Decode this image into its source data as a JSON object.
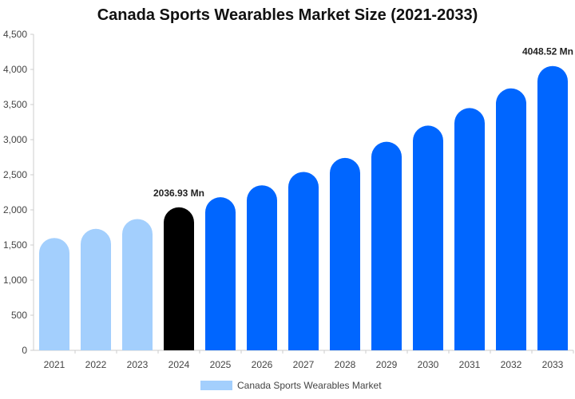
{
  "chart_data": {
    "type": "bar",
    "title": "Canada Sports Wearables Market Size (2021-2033)",
    "xlabel": "",
    "ylabel": "",
    "categories": [
      "2021",
      "2022",
      "2023",
      "2024",
      "2025",
      "2026",
      "2027",
      "2028",
      "2029",
      "2030",
      "2031",
      "2032",
      "2033"
    ],
    "series": [
      {
        "name": "Canada Sports Wearables Market",
        "values": [
          1600,
          1730,
          1870,
          2036.93,
          2180,
          2350,
          2540,
          2740,
          2970,
          3200,
          3450,
          3730,
          4048.52
        ]
      }
    ],
    "ylim": [
      0,
      4500
    ],
    "yticks": [
      0,
      500,
      1000,
      1500,
      2000,
      2500,
      3000,
      3500,
      4000,
      4500
    ],
    "ytick_labels": [
      "0",
      "500",
      "1,000",
      "1,500",
      "2,000",
      "2,500",
      "3,000",
      "3,500",
      "4,000",
      "4,500"
    ],
    "annotations": [
      {
        "category": "2024",
        "text": "2036.93 Mn"
      },
      {
        "category": "2033",
        "text": "4048.52 Mn"
      }
    ],
    "legend": {
      "placement": "bottom",
      "label": "Canada Sports Wearables Market"
    },
    "grid": false,
    "colors": {
      "historical": "#a3cffd",
      "base_year": "#000000",
      "forecast": "#0066ff",
      "axis": "#cccccc"
    }
  }
}
